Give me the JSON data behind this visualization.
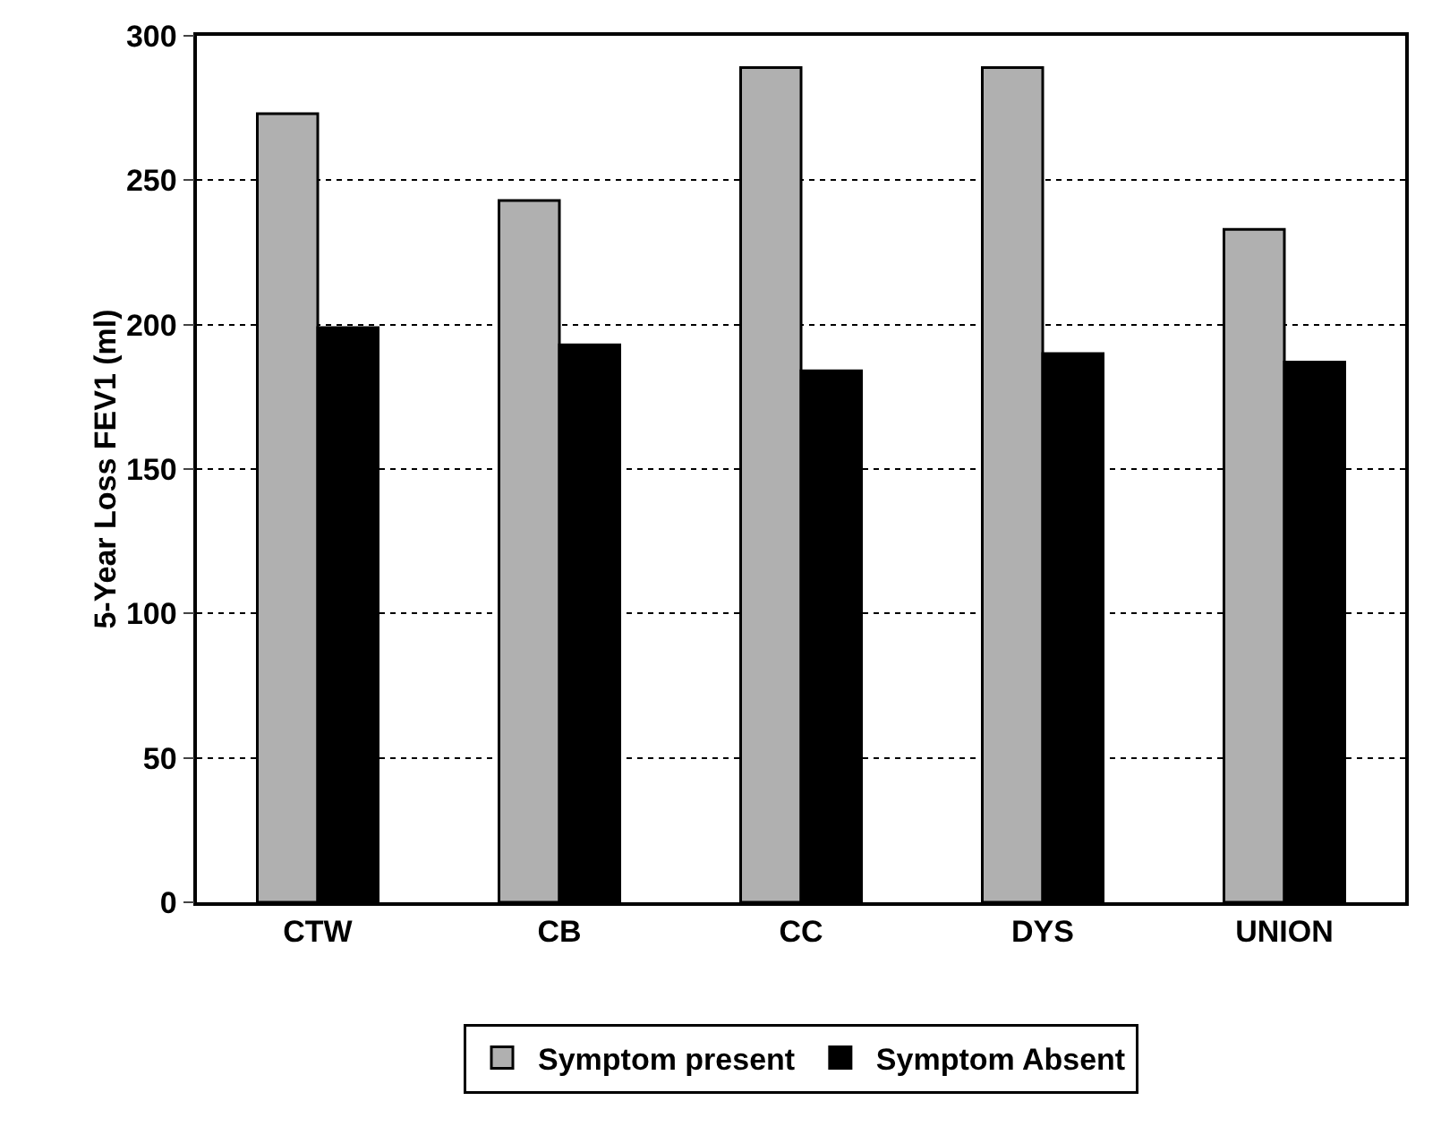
{
  "chart_data": {
    "type": "bar",
    "ylabel": "5-Year Loss FEV1 (ml)",
    "categories": [
      "CTW",
      "CB",
      "CC",
      "DYS",
      "UNION"
    ],
    "series": [
      {
        "name": "Symptom present",
        "color": "#b0b0b0",
        "values": [
          273,
          243,
          289,
          289,
          233
        ]
      },
      {
        "name": "Symptom Absent",
        "color": "#000000",
        "values": [
          199,
          193,
          184,
          190,
          187
        ]
      }
    ],
    "ylim": [
      0,
      300
    ],
    "yticks": [
      0,
      50,
      100,
      150,
      200,
      250,
      300
    ],
    "grid": "y",
    "legend": "bottom"
  }
}
